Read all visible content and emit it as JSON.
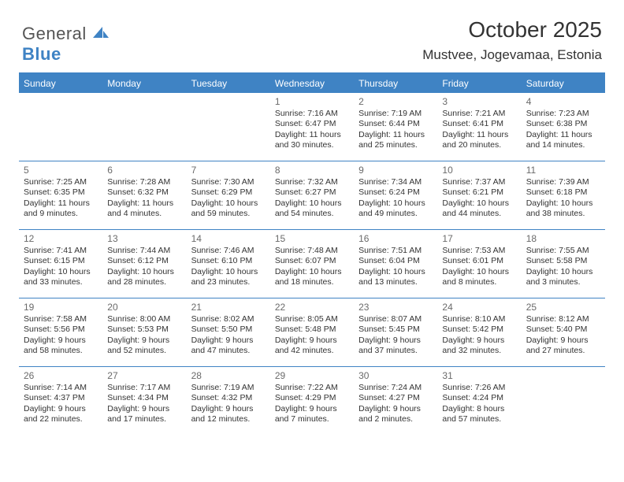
{
  "logo": {
    "word1": "General",
    "word2": "Blue",
    "sail_color": "#3f83c4"
  },
  "header": {
    "month_title": "October 2025",
    "location": "Mustvee, Jogevamaa, Estonia"
  },
  "styling": {
    "header_bg": "#3f83c4",
    "header_text_color": "#ffffff",
    "row_border_color": "#3f83c4",
    "page_bg": "#ffffff",
    "body_text_color": "#333333",
    "daynum_color": "#6a6a6a",
    "weekday_fontsize": 12,
    "daynum_fontsize": 12,
    "dayline_fontsize": 10.5,
    "title_fontsize": 28,
    "location_fontsize": 17,
    "logo_fontsize": 22
  },
  "weekdays": [
    "Sunday",
    "Monday",
    "Tuesday",
    "Wednesday",
    "Thursday",
    "Friday",
    "Saturday"
  ],
  "weeks": [
    [
      {
        "num": "",
        "l1": "",
        "l2": "",
        "l3": "",
        "l4": ""
      },
      {
        "num": "",
        "l1": "",
        "l2": "",
        "l3": "",
        "l4": ""
      },
      {
        "num": "",
        "l1": "",
        "l2": "",
        "l3": "",
        "l4": ""
      },
      {
        "num": "1",
        "l1": "Sunrise: 7:16 AM",
        "l2": "Sunset: 6:47 PM",
        "l3": "Daylight: 11 hours",
        "l4": "and 30 minutes."
      },
      {
        "num": "2",
        "l1": "Sunrise: 7:19 AM",
        "l2": "Sunset: 6:44 PM",
        "l3": "Daylight: 11 hours",
        "l4": "and 25 minutes."
      },
      {
        "num": "3",
        "l1": "Sunrise: 7:21 AM",
        "l2": "Sunset: 6:41 PM",
        "l3": "Daylight: 11 hours",
        "l4": "and 20 minutes."
      },
      {
        "num": "4",
        "l1": "Sunrise: 7:23 AM",
        "l2": "Sunset: 6:38 PM",
        "l3": "Daylight: 11 hours",
        "l4": "and 14 minutes."
      }
    ],
    [
      {
        "num": "5",
        "l1": "Sunrise: 7:25 AM",
        "l2": "Sunset: 6:35 PM",
        "l3": "Daylight: 11 hours",
        "l4": "and 9 minutes."
      },
      {
        "num": "6",
        "l1": "Sunrise: 7:28 AM",
        "l2": "Sunset: 6:32 PM",
        "l3": "Daylight: 11 hours",
        "l4": "and 4 minutes."
      },
      {
        "num": "7",
        "l1": "Sunrise: 7:30 AM",
        "l2": "Sunset: 6:29 PM",
        "l3": "Daylight: 10 hours",
        "l4": "and 59 minutes."
      },
      {
        "num": "8",
        "l1": "Sunrise: 7:32 AM",
        "l2": "Sunset: 6:27 PM",
        "l3": "Daylight: 10 hours",
        "l4": "and 54 minutes."
      },
      {
        "num": "9",
        "l1": "Sunrise: 7:34 AM",
        "l2": "Sunset: 6:24 PM",
        "l3": "Daylight: 10 hours",
        "l4": "and 49 minutes."
      },
      {
        "num": "10",
        "l1": "Sunrise: 7:37 AM",
        "l2": "Sunset: 6:21 PM",
        "l3": "Daylight: 10 hours",
        "l4": "and 44 minutes."
      },
      {
        "num": "11",
        "l1": "Sunrise: 7:39 AM",
        "l2": "Sunset: 6:18 PM",
        "l3": "Daylight: 10 hours",
        "l4": "and 38 minutes."
      }
    ],
    [
      {
        "num": "12",
        "l1": "Sunrise: 7:41 AM",
        "l2": "Sunset: 6:15 PM",
        "l3": "Daylight: 10 hours",
        "l4": "and 33 minutes."
      },
      {
        "num": "13",
        "l1": "Sunrise: 7:44 AM",
        "l2": "Sunset: 6:12 PM",
        "l3": "Daylight: 10 hours",
        "l4": "and 28 minutes."
      },
      {
        "num": "14",
        "l1": "Sunrise: 7:46 AM",
        "l2": "Sunset: 6:10 PM",
        "l3": "Daylight: 10 hours",
        "l4": "and 23 minutes."
      },
      {
        "num": "15",
        "l1": "Sunrise: 7:48 AM",
        "l2": "Sunset: 6:07 PM",
        "l3": "Daylight: 10 hours",
        "l4": "and 18 minutes."
      },
      {
        "num": "16",
        "l1": "Sunrise: 7:51 AM",
        "l2": "Sunset: 6:04 PM",
        "l3": "Daylight: 10 hours",
        "l4": "and 13 minutes."
      },
      {
        "num": "17",
        "l1": "Sunrise: 7:53 AM",
        "l2": "Sunset: 6:01 PM",
        "l3": "Daylight: 10 hours",
        "l4": "and 8 minutes."
      },
      {
        "num": "18",
        "l1": "Sunrise: 7:55 AM",
        "l2": "Sunset: 5:58 PM",
        "l3": "Daylight: 10 hours",
        "l4": "and 3 minutes."
      }
    ],
    [
      {
        "num": "19",
        "l1": "Sunrise: 7:58 AM",
        "l2": "Sunset: 5:56 PM",
        "l3": "Daylight: 9 hours",
        "l4": "and 58 minutes."
      },
      {
        "num": "20",
        "l1": "Sunrise: 8:00 AM",
        "l2": "Sunset: 5:53 PM",
        "l3": "Daylight: 9 hours",
        "l4": "and 52 minutes."
      },
      {
        "num": "21",
        "l1": "Sunrise: 8:02 AM",
        "l2": "Sunset: 5:50 PM",
        "l3": "Daylight: 9 hours",
        "l4": "and 47 minutes."
      },
      {
        "num": "22",
        "l1": "Sunrise: 8:05 AM",
        "l2": "Sunset: 5:48 PM",
        "l3": "Daylight: 9 hours",
        "l4": "and 42 minutes."
      },
      {
        "num": "23",
        "l1": "Sunrise: 8:07 AM",
        "l2": "Sunset: 5:45 PM",
        "l3": "Daylight: 9 hours",
        "l4": "and 37 minutes."
      },
      {
        "num": "24",
        "l1": "Sunrise: 8:10 AM",
        "l2": "Sunset: 5:42 PM",
        "l3": "Daylight: 9 hours",
        "l4": "and 32 minutes."
      },
      {
        "num": "25",
        "l1": "Sunrise: 8:12 AM",
        "l2": "Sunset: 5:40 PM",
        "l3": "Daylight: 9 hours",
        "l4": "and 27 minutes."
      }
    ],
    [
      {
        "num": "26",
        "l1": "Sunrise: 7:14 AM",
        "l2": "Sunset: 4:37 PM",
        "l3": "Daylight: 9 hours",
        "l4": "and 22 minutes."
      },
      {
        "num": "27",
        "l1": "Sunrise: 7:17 AM",
        "l2": "Sunset: 4:34 PM",
        "l3": "Daylight: 9 hours",
        "l4": "and 17 minutes."
      },
      {
        "num": "28",
        "l1": "Sunrise: 7:19 AM",
        "l2": "Sunset: 4:32 PM",
        "l3": "Daylight: 9 hours",
        "l4": "and 12 minutes."
      },
      {
        "num": "29",
        "l1": "Sunrise: 7:22 AM",
        "l2": "Sunset: 4:29 PM",
        "l3": "Daylight: 9 hours",
        "l4": "and 7 minutes."
      },
      {
        "num": "30",
        "l1": "Sunrise: 7:24 AM",
        "l2": "Sunset: 4:27 PM",
        "l3": "Daylight: 9 hours",
        "l4": "and 2 minutes."
      },
      {
        "num": "31",
        "l1": "Sunrise: 7:26 AM",
        "l2": "Sunset: 4:24 PM",
        "l3": "Daylight: 8 hours",
        "l4": "and 57 minutes."
      },
      {
        "num": "",
        "l1": "",
        "l2": "",
        "l3": "",
        "l4": ""
      }
    ]
  ]
}
